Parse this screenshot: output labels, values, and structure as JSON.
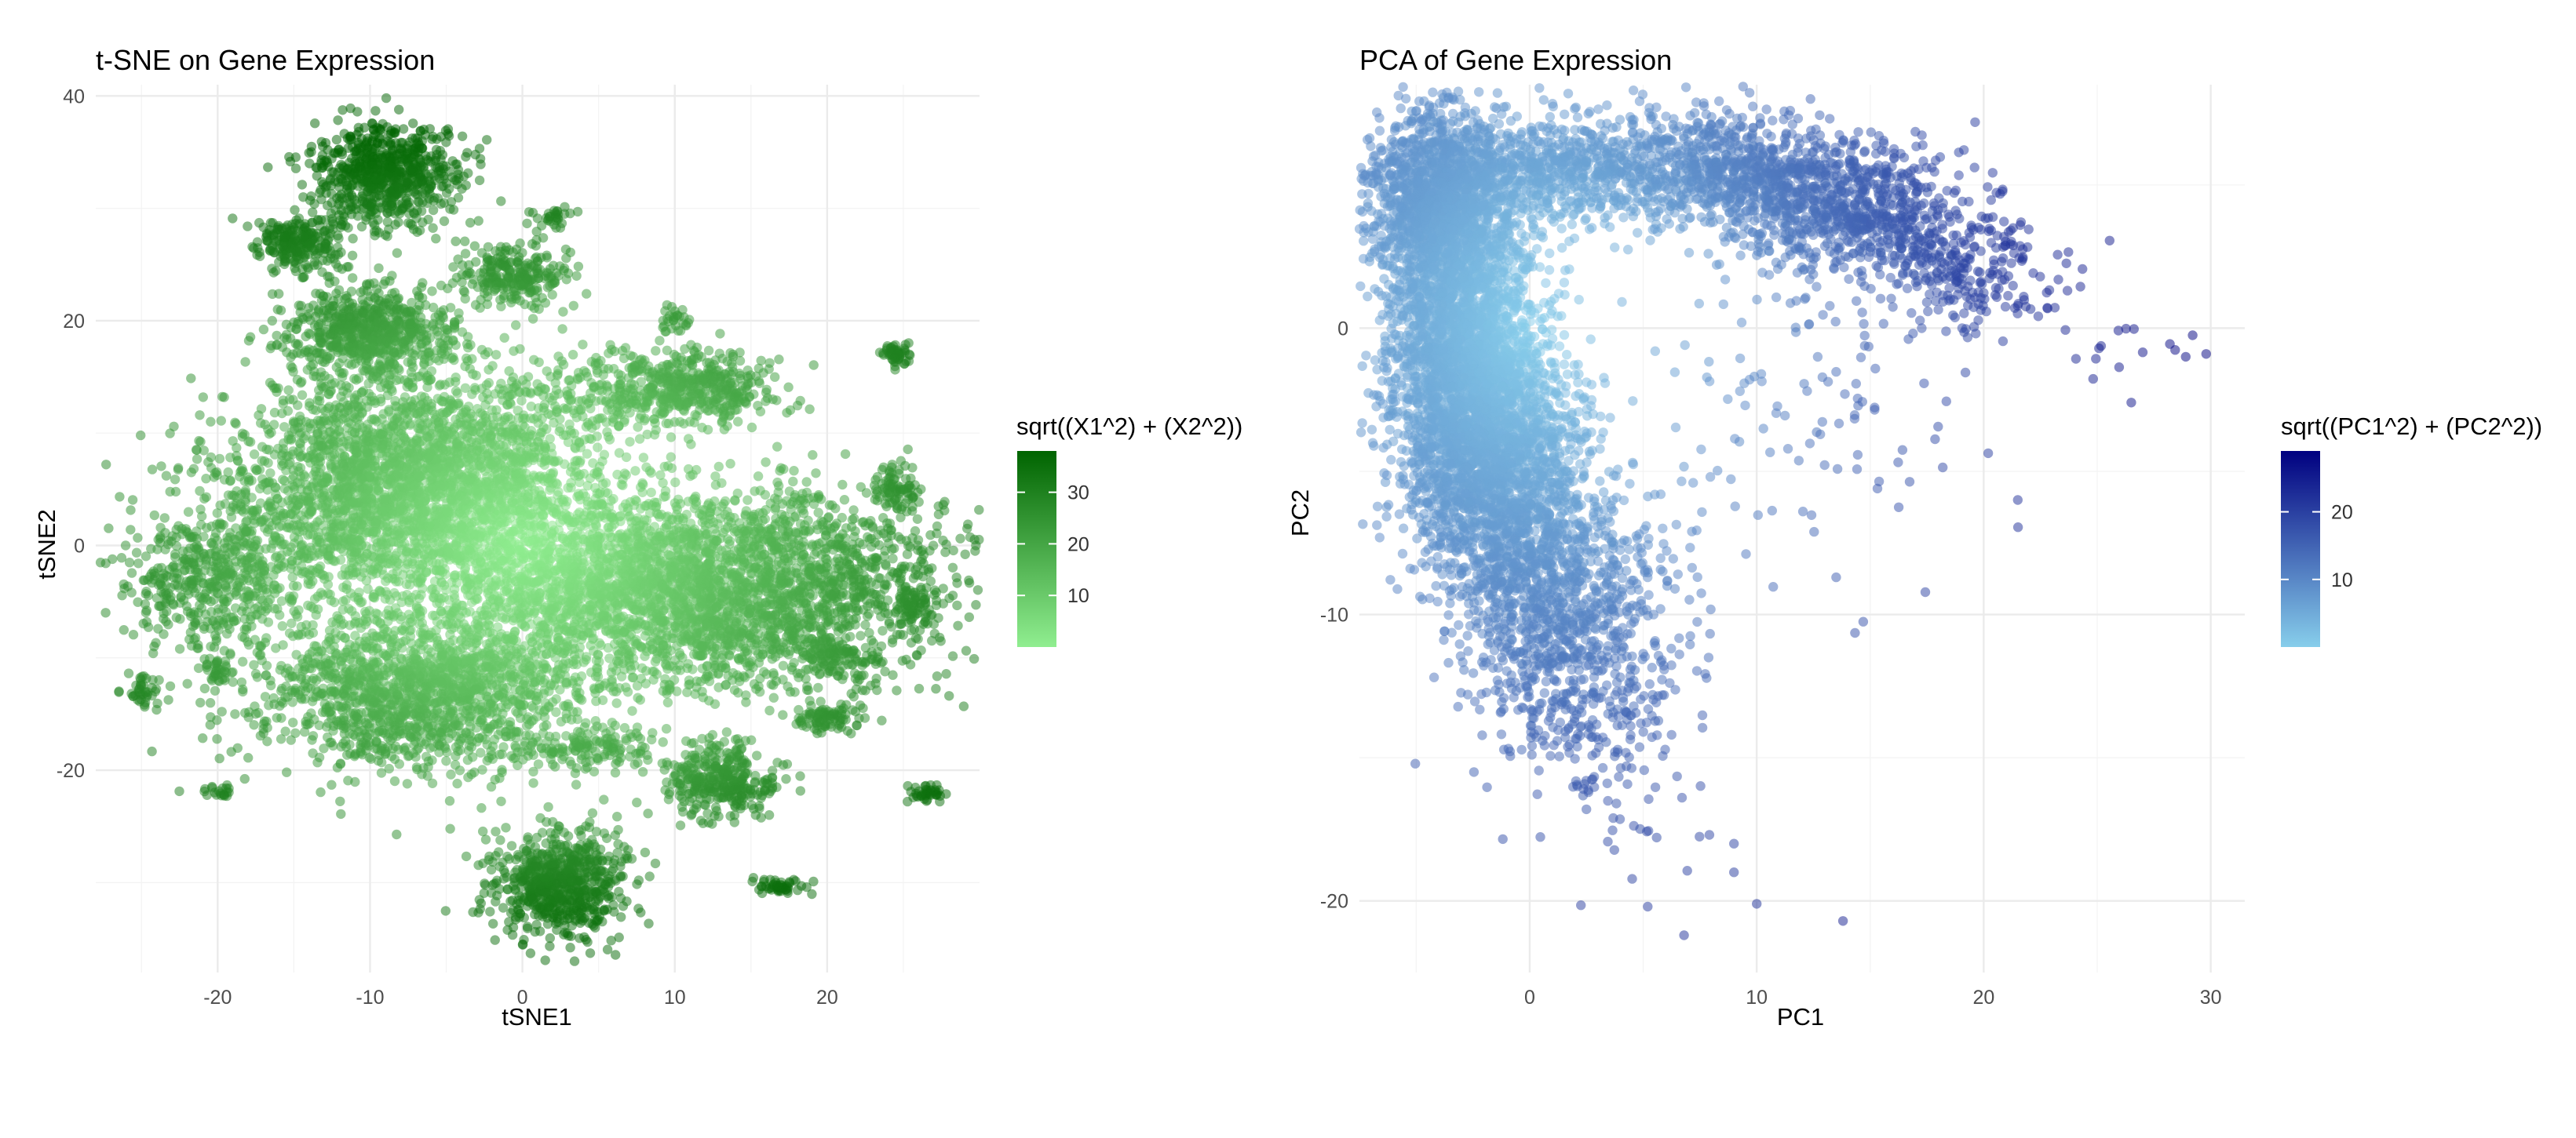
{
  "chart_data": [
    {
      "type": "scatter",
      "title": "t-SNE on Gene Expression",
      "xlabel": "tSNE1",
      "ylabel": "tSNE2",
      "xlim": [
        -28,
        30
      ],
      "ylim": [
        -38,
        41
      ],
      "xticks": [
        -20,
        -10,
        0,
        10,
        20
      ],
      "yticks": [
        -20,
        0,
        20,
        40
      ],
      "grid": true,
      "legend": {
        "title": "sqrt((X1^2) + (X2^2))",
        "placement": "right",
        "range": [
          0,
          38
        ],
        "ticks": [
          10,
          20,
          30
        ],
        "color_low": "#90ee90",
        "color_high": "#006400"
      },
      "point_alpha": 0.5,
      "clusters": [
        {
          "x": -7,
          "y": 5,
          "sx": 6,
          "sy": 5,
          "n": 3200
        },
        {
          "x": 14,
          "y": -4,
          "sx": 7,
          "sy": 4.5,
          "n": 2600
        },
        {
          "x": -7,
          "y": -13,
          "sx": 5,
          "sy": 3.5,
          "n": 1600
        },
        {
          "x": 3,
          "y": -4,
          "sx": 5,
          "sy": 4,
          "n": 900
        },
        {
          "x": -20,
          "y": -3,
          "sx": 3,
          "sy": 3,
          "n": 500
        },
        {
          "x": -9,
          "y": 33,
          "sx": 2.4,
          "sy": 2.3,
          "n": 700
        },
        {
          "x": -10,
          "y": 19,
          "sx": 2.8,
          "sy": 2,
          "n": 700
        },
        {
          "x": -14.5,
          "y": 27,
          "sx": 1.4,
          "sy": 1.2,
          "n": 250
        },
        {
          "x": -0.5,
          "y": 24,
          "sx": 1.8,
          "sy": 1.5,
          "n": 250
        },
        {
          "x": 11.5,
          "y": 14,
          "sx": 2.4,
          "sy": 1.5,
          "n": 400
        },
        {
          "x": 2.5,
          "y": -30,
          "sx": 2.2,
          "sy": 2.4,
          "n": 700
        },
        {
          "x": 13,
          "y": -21,
          "sx": 1.8,
          "sy": 1.6,
          "n": 350
        },
        {
          "x": 24.5,
          "y": 5,
          "sx": 0.8,
          "sy": 1,
          "n": 80
        },
        {
          "x": 25.5,
          "y": -5,
          "sx": 0.6,
          "sy": 0.8,
          "n": 60
        },
        {
          "x": 20.5,
          "y": -10,
          "sx": 1,
          "sy": 0.8,
          "n": 80
        },
        {
          "x": 20,
          "y": -15.5,
          "sx": 1,
          "sy": 0.7,
          "n": 80
        },
        {
          "x": 24.5,
          "y": 17,
          "sx": 0.5,
          "sy": 0.5,
          "n": 50
        },
        {
          "x": 17,
          "y": -30.5,
          "sx": 1,
          "sy": 0.4,
          "n": 50
        },
        {
          "x": 26.5,
          "y": -22,
          "sx": 0.6,
          "sy": 0.4,
          "n": 40
        },
        {
          "x": -25,
          "y": -13,
          "sx": 0.6,
          "sy": 0.8,
          "n": 40
        },
        {
          "x": -20,
          "y": -11,
          "sx": 0.5,
          "sy": 0.6,
          "n": 30
        },
        {
          "x": -20,
          "y": -22,
          "sx": 0.5,
          "sy": 0.4,
          "n": 20
        },
        {
          "x": 10,
          "y": 20,
          "sx": 0.5,
          "sy": 0.6,
          "n": 30
        },
        {
          "x": 2,
          "y": 29,
          "sx": 0.7,
          "sy": 0.6,
          "n": 30
        },
        {
          "x": 4,
          "y": -18,
          "sx": 2.5,
          "sy": 1,
          "n": 150
        },
        {
          "x": 6,
          "y": 14,
          "sx": 3,
          "sy": 2,
          "n": 200
        }
      ]
    },
    {
      "type": "scatter",
      "title": "PCA of Gene Expression",
      "xlabel": "PC1",
      "ylabel": "PC2",
      "xlim": [
        -7.5,
        31.5
      ],
      "ylim": [
        -22.5,
        8.5
      ],
      "xticks": [
        0,
        10,
        20,
        30
      ],
      "yticks": [
        -20,
        -10,
        0
      ],
      "grid": true,
      "legend": {
        "title": "sqrt((PC1^2) + (PC2^2))",
        "placement": "right",
        "range": [
          0,
          29
        ],
        "ticks": [
          10,
          20
        ],
        "color_low": "#87ceeb",
        "color_high": "#000080"
      },
      "point_alpha": 0.5,
      "clusters": [
        {
          "x": -4,
          "y": 4.5,
          "sx": 1.6,
          "sy": 1.6,
          "n": 1400
        },
        {
          "x": -3,
          "y": -1,
          "sx": 1.6,
          "sy": 3,
          "n": 2600
        },
        {
          "x": -1,
          "y": -5,
          "sx": 1.8,
          "sy": 2.5,
          "n": 1600
        },
        {
          "x": 1.5,
          "y": -10,
          "sx": 2.2,
          "sy": 2.6,
          "n": 900
        },
        {
          "x": 8,
          "y": 5.5,
          "sx": 3,
          "sy": 1,
          "n": 900
        },
        {
          "x": 14,
          "y": 4,
          "sx": 2.6,
          "sy": 1.1,
          "n": 700
        },
        {
          "x": 19,
          "y": 2,
          "sx": 2,
          "sy": 1.1,
          "n": 250
        },
        {
          "x": 1,
          "y": 5.5,
          "sx": 2,
          "sy": 1,
          "n": 500
        },
        {
          "x": 4,
          "y": -14,
          "sx": 2,
          "sy": 2.5,
          "n": 150
        },
        {
          "x": 12,
          "y": -3,
          "sx": 4.5,
          "sy": 3,
          "n": 120
        },
        {
          "x": 26,
          "y": -0.8,
          "sx": 2.5,
          "sy": 0.6,
          "n": 15
        }
      ],
      "outliers": [
        {
          "x": 5.2,
          "y": -20.2
        },
        {
          "x": 6.8,
          "y": -21.2
        },
        {
          "x": 10,
          "y": -20.1
        },
        {
          "x": 13.8,
          "y": -20.7
        },
        {
          "x": 9,
          "y": -19
        },
        {
          "x": 9,
          "y": -18
        },
        {
          "x": 2.5,
          "y": -16.8
        },
        {
          "x": 21.5,
          "y": -6
        },
        {
          "x": 26.5,
          "y": -2.6
        },
        {
          "x": 13.5,
          "y": -8.7
        },
        {
          "x": 29.8,
          "y": -0.9
        },
        {
          "x": 28.9,
          "y": -1
        }
      ]
    }
  ]
}
